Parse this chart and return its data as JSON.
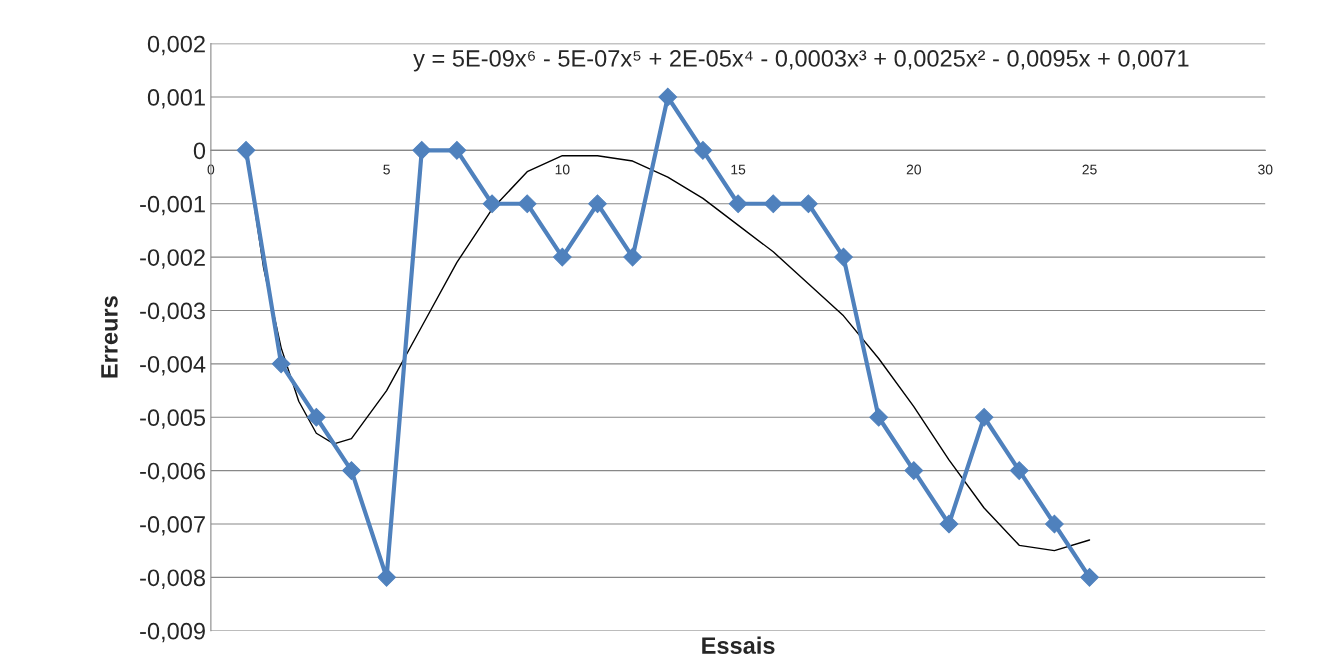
{
  "chart_data": {
    "type": "line",
    "xlabel": "Essais",
    "ylabel": "Erreurs",
    "annotations": [
      "y = 5E-09x⁶ - 5E-07x⁵ + 2E-05x⁴ - 0,0003x³ + 0,0025x² - 0,0095x + 0,0071"
    ],
    "x": [
      1,
      2,
      3,
      4,
      5,
      6,
      7,
      8,
      9,
      10,
      11,
      12,
      13,
      14,
      15,
      16,
      17,
      18,
      19,
      20,
      21,
      22,
      23,
      24,
      25
    ],
    "series": [
      {
        "color": "#4f81bd",
        "marker": "diamond",
        "values": [
          0,
          -0.004,
          -0.005,
          -0.006,
          -0.008,
          0,
          0,
          -0.001,
          -0.001,
          -0.002,
          -0.001,
          -0.002,
          0.001,
          0,
          -0.001,
          -0.001,
          -0.001,
          -0.002,
          -0.005,
          -0.006,
          -0.007,
          -0.005,
          -0.006,
          -0.007,
          -0.008
        ]
      },
      {
        "type": "line",
        "color": "#000000",
        "marker": "none",
        "x": [
          1,
          1.5,
          2,
          2.5,
          3,
          3.5,
          4,
          5,
          6,
          7,
          8,
          9,
          10,
          11,
          12,
          13,
          14,
          15,
          16,
          17,
          18,
          19,
          20,
          21,
          22,
          23,
          24,
          25
        ],
        "values": [
          0,
          -0.0022,
          -0.0037,
          -0.0047,
          -0.0053,
          -0.0055,
          -0.0054,
          -0.0045,
          -0.0033,
          -0.0021,
          -0.0011,
          -0.0004,
          -0.0001,
          -0.0001,
          -0.0002,
          -0.0005,
          -0.0009,
          -0.0014,
          -0.0019,
          -0.0025,
          -0.0031,
          -0.0039,
          -0.0048,
          -0.0058,
          -0.0067,
          -0.0074,
          -0.0075,
          -0.0073
        ]
      }
    ],
    "xlim": [
      0,
      30
    ],
    "xticks": [
      0,
      5,
      10,
      15,
      20,
      25,
      30
    ],
    "ylim": [
      -0.009,
      0.002
    ],
    "yticks": [
      {
        "value": 0.002,
        "label": "0,002"
      },
      {
        "value": 0.001,
        "label": "0,001"
      },
      0,
      {
        "value": -0.001,
        "label": "-0,001"
      },
      {
        "value": -0.002,
        "label": "-0,002"
      },
      {
        "value": -0.003,
        "label": "-0,003"
      },
      {
        "value": -0.004,
        "label": "-0,004"
      },
      {
        "value": -0.005,
        "label": "-0,005"
      },
      {
        "value": -0.006,
        "label": "-0,006"
      },
      {
        "value": -0.007,
        "label": "-0,007"
      },
      {
        "value": -0.008,
        "label": "-0,008"
      },
      {
        "value": -0.009,
        "label": "-0,009"
      }
    ],
    "grid": "y",
    "legend": false,
    "line_style": "solid"
  }
}
